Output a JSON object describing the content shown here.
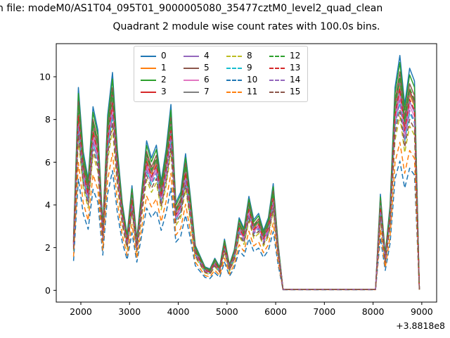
{
  "header": {
    "file_line": "n file: modeM0/AS1T04_095T01_9000005080_35477cztM0_level2_quad_clean",
    "title": "Quadrant 2 module wise count rates with 100.0s bins."
  },
  "chart_data": {
    "type": "line",
    "title": "Quadrant 2 module wise count rates with 100.0s bins.",
    "xlabel": "",
    "ylabel": "",
    "x_offset_text": "+3.8818e8",
    "xlim": [
      1495,
      9305
    ],
    "ylim": [
      -0.55,
      11.55
    ],
    "xticks": [
      2000,
      3000,
      4000,
      5000,
      6000,
      7000,
      8000,
      9000
    ],
    "yticks": [
      0,
      2,
      4,
      6,
      8,
      10
    ],
    "grid": false,
    "legend_position": "upper center",
    "legend_columns": 4,
    "x": [
      1850,
      1950,
      2050,
      2150,
      2250,
      2350,
      2450,
      2550,
      2650,
      2750,
      2850,
      2950,
      3050,
      3150,
      3250,
      3350,
      3450,
      3550,
      3650,
      3750,
      3850,
      3950,
      4050,
      4150,
      4250,
      4350,
      4450,
      4550,
      4650,
      4750,
      4850,
      4950,
      5050,
      5150,
      5250,
      5350,
      5450,
      5550,
      5650,
      5750,
      5850,
      5950,
      6050,
      6150,
      6250,
      6500,
      7000,
      7500,
      8050,
      8150,
      8250,
      8350,
      8450,
      8550,
      8650,
      8750,
      8850,
      8950
    ],
    "base_values": [
      2.5,
      9.5,
      6.5,
      5.2,
      8.6,
      7.5,
      3.0,
      8.2,
      10.2,
      6.6,
      4.1,
      2.6,
      4.9,
      2.4,
      4.7,
      7.0,
      6.2,
      6.8,
      5.1,
      6.6,
      8.7,
      4.1,
      4.6,
      6.4,
      4.4,
      2.1,
      1.6,
      1.1,
      1.0,
      1.5,
      1.1,
      2.4,
      1.2,
      1.9,
      3.4,
      2.9,
      4.4,
      3.3,
      3.6,
      2.8,
      3.4,
      5.0,
      2.2,
      0.05,
      0.05,
      0.05,
      0.05,
      0.05,
      0.05,
      4.5,
      1.7,
      4.0,
      9.5,
      11.0,
      8.7,
      10.4,
      9.8,
      0.05
    ],
    "series": [
      {
        "name": "0",
        "color": "#1f77b4",
        "dash": false,
        "scale_of_base": 1.0
      },
      {
        "name": "1",
        "color": "#ff7f0e",
        "dash": false,
        "scale_of_base": 0.88
      },
      {
        "name": "2",
        "color": "#2ca02c",
        "dash": false,
        "scale_of_base": 0.97
      },
      {
        "name": "3",
        "color": "#d62728",
        "dash": false,
        "scale_of_base": 0.9
      },
      {
        "name": "4",
        "color": "#9467bd",
        "dash": false,
        "scale_of_base": 0.85
      },
      {
        "name": "5",
        "color": "#8c564b",
        "dash": false,
        "scale_of_base": 0.93
      },
      {
        "name": "6",
        "color": "#e377c2",
        "dash": false,
        "scale_of_base": 0.83
      },
      {
        "name": "7",
        "color": "#7f7f7f",
        "dash": false,
        "scale_of_base": 0.89
      },
      {
        "name": "8",
        "color": "#bcbd22",
        "dash": true,
        "scale_of_base": 0.74
      },
      {
        "name": "9",
        "color": "#17becf",
        "dash": true,
        "scale_of_base": 0.8
      },
      {
        "name": "10",
        "color": "#1f77b4",
        "dash": true,
        "scale_of_base": 0.55
      },
      {
        "name": "11",
        "color": "#ff7f0e",
        "dash": true,
        "scale_of_base": 0.63
      },
      {
        "name": "12",
        "color": "#2ca02c",
        "dash": true,
        "scale_of_base": 0.91
      },
      {
        "name": "13",
        "color": "#d62728",
        "dash": true,
        "scale_of_base": 0.86
      },
      {
        "name": "14",
        "color": "#9467bd",
        "dash": true,
        "scale_of_base": 0.81
      },
      {
        "name": "15",
        "color": "#8c564b",
        "dash": true,
        "scale_of_base": 0.77
      }
    ]
  }
}
